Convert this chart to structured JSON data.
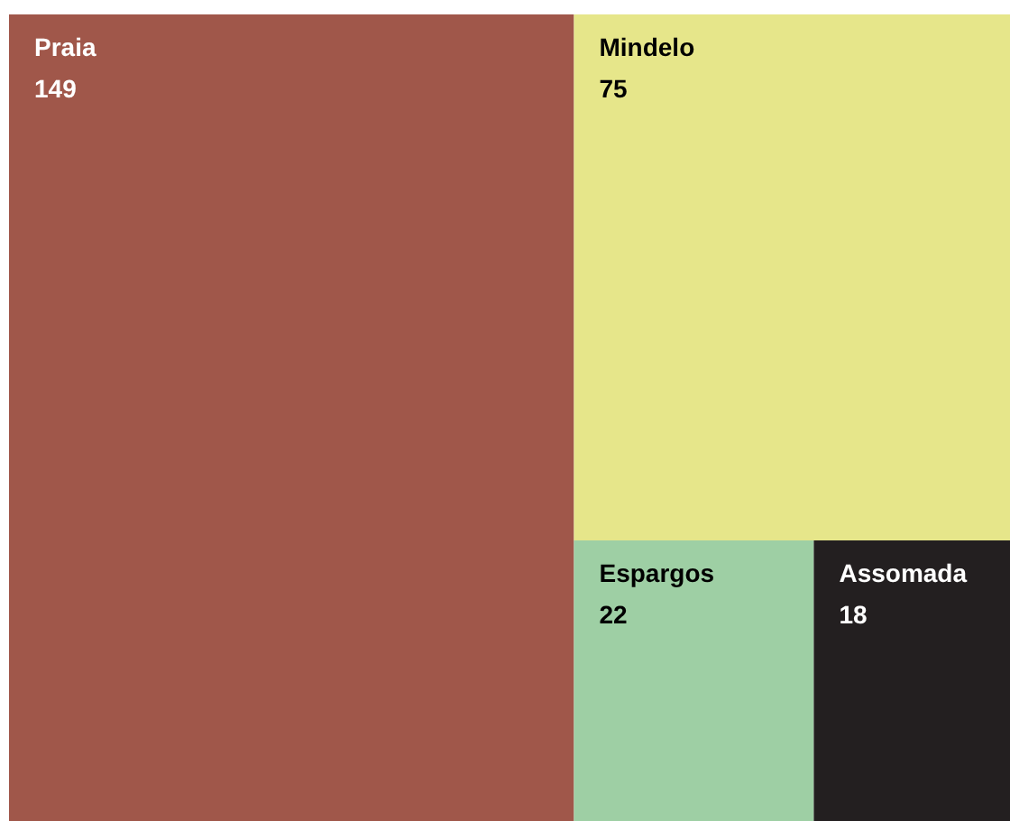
{
  "chart_data": {
    "type": "other",
    "categories": [
      "Praia",
      "Mindelo",
      "Espargos",
      "Assomada"
    ],
    "values": [
      149,
      75,
      22,
      18
    ],
    "colors": [
      "#a0574a",
      "#e6e68a",
      "#9ecfa4",
      "#231f20"
    ],
    "data_labels": true
  }
}
